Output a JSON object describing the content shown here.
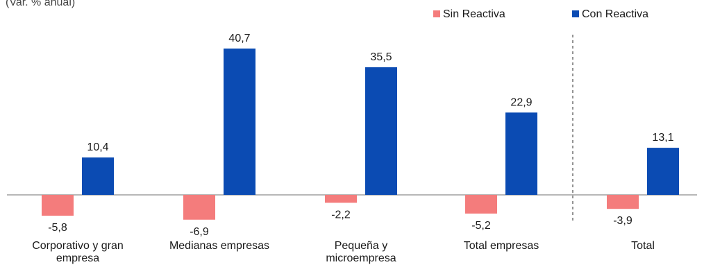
{
  "chart_data": {
    "type": "bar",
    "title": "(Var. % anual)",
    "categories": [
      "Corporativo y gran empresa",
      "Medianas empresas",
      "Pequeña y microempresa",
      "Total empresas",
      "Total"
    ],
    "series": [
      {
        "name": "Sin Reactiva",
        "color": "#f47c7c",
        "values": [
          -5.8,
          -6.9,
          -2.2,
          -5.2,
          -3.9
        ],
        "labels": [
          "-5,8",
          "-6,9",
          "-2,2",
          "-5,2",
          "-3,9"
        ]
      },
      {
        "name": "Con Reactiva",
        "color": "#0b4bb3",
        "values": [
          10.4,
          40.7,
          35.5,
          22.9,
          13.1
        ],
        "labels": [
          "10,4",
          "40,7",
          "35,5",
          "22,9",
          "13,1"
        ]
      }
    ],
    "ylim": [
      -12,
      45
    ],
    "grid": false,
    "legend_position": "top-right",
    "separator_before": "Total"
  }
}
